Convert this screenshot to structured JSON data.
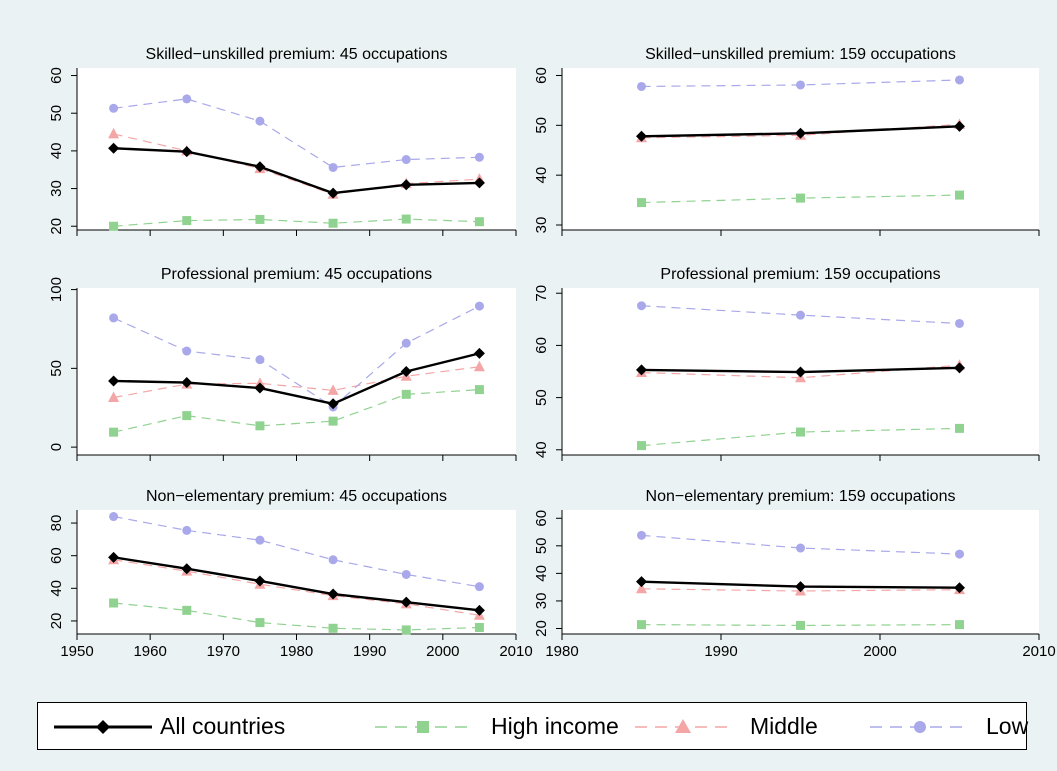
{
  "colors": {
    "background": "#eaf2f3",
    "plot_background": "#ffffff",
    "all": "#000000",
    "high": "#90d290",
    "middle": "#f4a6a6",
    "low": "#a8a8ea"
  },
  "legend": {
    "items": [
      {
        "key": "all",
        "label": "All countries",
        "marker": "diamond",
        "dash": "solid"
      },
      {
        "key": "high",
        "label": "High income",
        "marker": "square",
        "dash": "dashed"
      },
      {
        "key": "middle",
        "label": "Middle",
        "marker": "triangle",
        "dash": "dashed"
      },
      {
        "key": "low",
        "label": "Low",
        "marker": "circle",
        "dash": "dashed"
      }
    ]
  },
  "chart_data": [
    {
      "type": "line",
      "title": "Skilled−unskilled premium: 45 occupations",
      "x": [
        1955,
        1965,
        1975,
        1985,
        1995,
        2005
      ],
      "xlim": [
        1950,
        2010
      ],
      "xticks": [
        1950,
        1960,
        1970,
        1980,
        1990,
        2000,
        2010
      ],
      "xtick_labels_shown": false,
      "ylim": [
        19,
        62
      ],
      "yticks": [
        20,
        30,
        40,
        50,
        60
      ],
      "grid": false,
      "series": [
        {
          "name": "All countries",
          "key": "all",
          "values": [
            40.7,
            39.8,
            35.8,
            28.8,
            31.0,
            31.5
          ]
        },
        {
          "name": "High income",
          "key": "high",
          "values": [
            20.0,
            21.5,
            21.8,
            20.8,
            21.9,
            21.2
          ]
        },
        {
          "name": "Middle",
          "key": "middle",
          "values": [
            44.5,
            40.0,
            35.3,
            28.5,
            31.3,
            32.5
          ]
        },
        {
          "name": "Low",
          "key": "low",
          "values": [
            51.3,
            53.8,
            47.9,
            35.6,
            37.7,
            38.3
          ]
        }
      ]
    },
    {
      "type": "line",
      "title": "Skilled−unskilled premium: 159 occupations",
      "x": [
        1985,
        1995,
        2005
      ],
      "xlim": [
        1980,
        2010
      ],
      "xticks": [
        1980,
        1990,
        2000,
        2010
      ],
      "xtick_labels_shown": false,
      "ylim": [
        29,
        61.5
      ],
      "yticks": [
        30,
        40,
        50,
        60
      ],
      "grid": false,
      "series": [
        {
          "name": "All countries",
          "key": "all",
          "values": [
            47.8,
            48.4,
            49.8
          ]
        },
        {
          "name": "High income",
          "key": "high",
          "values": [
            34.5,
            35.4,
            36.0
          ]
        },
        {
          "name": "Middle",
          "key": "middle",
          "values": [
            47.5,
            48.0,
            50.2
          ]
        },
        {
          "name": "Low",
          "key": "low",
          "values": [
            57.8,
            58.1,
            59.1
          ]
        }
      ]
    },
    {
      "type": "line",
      "title": "Professional premium: 45 occupations",
      "x": [
        1955,
        1965,
        1975,
        1985,
        1995,
        2005
      ],
      "xlim": [
        1950,
        2010
      ],
      "xticks": [
        1950,
        1960,
        1970,
        1980,
        1990,
        2000,
        2010
      ],
      "xtick_labels_shown": false,
      "ylim": [
        -5,
        101
      ],
      "yticks": [
        0,
        50,
        100
      ],
      "grid": false,
      "series": [
        {
          "name": "All countries",
          "key": "all",
          "values": [
            42,
            41,
            37.5,
            27.5,
            48,
            59.5
          ]
        },
        {
          "name": "High income",
          "key": "high",
          "values": [
            9.5,
            20,
            13.5,
            16.5,
            33.5,
            36.5
          ]
        },
        {
          "name": "Middle",
          "key": "middle",
          "values": [
            31.5,
            40,
            40.5,
            36,
            45,
            51
          ]
        },
        {
          "name": "Low",
          "key": "low",
          "values": [
            82,
            61,
            55.5,
            25.5,
            66,
            89.5
          ]
        }
      ]
    },
    {
      "type": "line",
      "title": "Professional premium: 159 occupations",
      "x": [
        1985,
        1995,
        2005
      ],
      "xlim": [
        1980,
        2010
      ],
      "xticks": [
        1980,
        1990,
        2000,
        2010
      ],
      "xtick_labels_shown": false,
      "ylim": [
        39,
        71
      ],
      "yticks": [
        40,
        50,
        60,
        70
      ],
      "grid": false,
      "series": [
        {
          "name": "All countries",
          "key": "all",
          "values": [
            55.3,
            54.9,
            55.7
          ]
        },
        {
          "name": "High income",
          "key": "high",
          "values": [
            40.8,
            43.4,
            44.1
          ]
        },
        {
          "name": "Middle",
          "key": "middle",
          "values": [
            54.8,
            53.8,
            56.2
          ]
        },
        {
          "name": "Low",
          "key": "low",
          "values": [
            67.6,
            65.8,
            64.2
          ]
        }
      ]
    },
    {
      "type": "line",
      "title": "Non−elementary premium: 45 occupations",
      "x": [
        1955,
        1965,
        1975,
        1985,
        1995,
        2005
      ],
      "xlim": [
        1950,
        2010
      ],
      "xticks": [
        1950,
        1960,
        1970,
        1980,
        1990,
        2000,
        2010
      ],
      "xtick_labels_shown": true,
      "ylim": [
        12,
        88
      ],
      "yticks": [
        20,
        40,
        60,
        80
      ],
      "grid": false,
      "series": [
        {
          "name": "All countries",
          "key": "all",
          "values": [
            59,
            52,
            44.5,
            36.5,
            31.5,
            26.5
          ]
        },
        {
          "name": "High income",
          "key": "high",
          "values": [
            31,
            26.5,
            19,
            15.5,
            14.5,
            16
          ]
        },
        {
          "name": "Middle",
          "key": "middle",
          "values": [
            57.5,
            50.5,
            42.5,
            35.5,
            30.5,
            23.5
          ]
        },
        {
          "name": "Low",
          "key": "low",
          "values": [
            84,
            75.5,
            69.5,
            57.5,
            48.5,
            41
          ]
        }
      ]
    },
    {
      "type": "line",
      "title": "Non−elementary premium: 159 occupations",
      "x": [
        1985,
        1995,
        2005
      ],
      "xlim": [
        1980,
        2010
      ],
      "xticks": [
        1980,
        1990,
        2000,
        2010
      ],
      "xtick_labels_shown": true,
      "ylim": [
        18,
        63
      ],
      "yticks": [
        20,
        30,
        40,
        50,
        60
      ],
      "grid": false,
      "series": [
        {
          "name": "All countries",
          "key": "all",
          "values": [
            37.0,
            35.2,
            34.8
          ]
        },
        {
          "name": "High income",
          "key": "high",
          "values": [
            21.4,
            21.1,
            21.4
          ]
        },
        {
          "name": "Middle",
          "key": "middle",
          "values": [
            34.4,
            33.6,
            34.1
          ]
        },
        {
          "name": "Low",
          "key": "low",
          "values": [
            53.8,
            49.2,
            47.0
          ]
        }
      ]
    }
  ]
}
